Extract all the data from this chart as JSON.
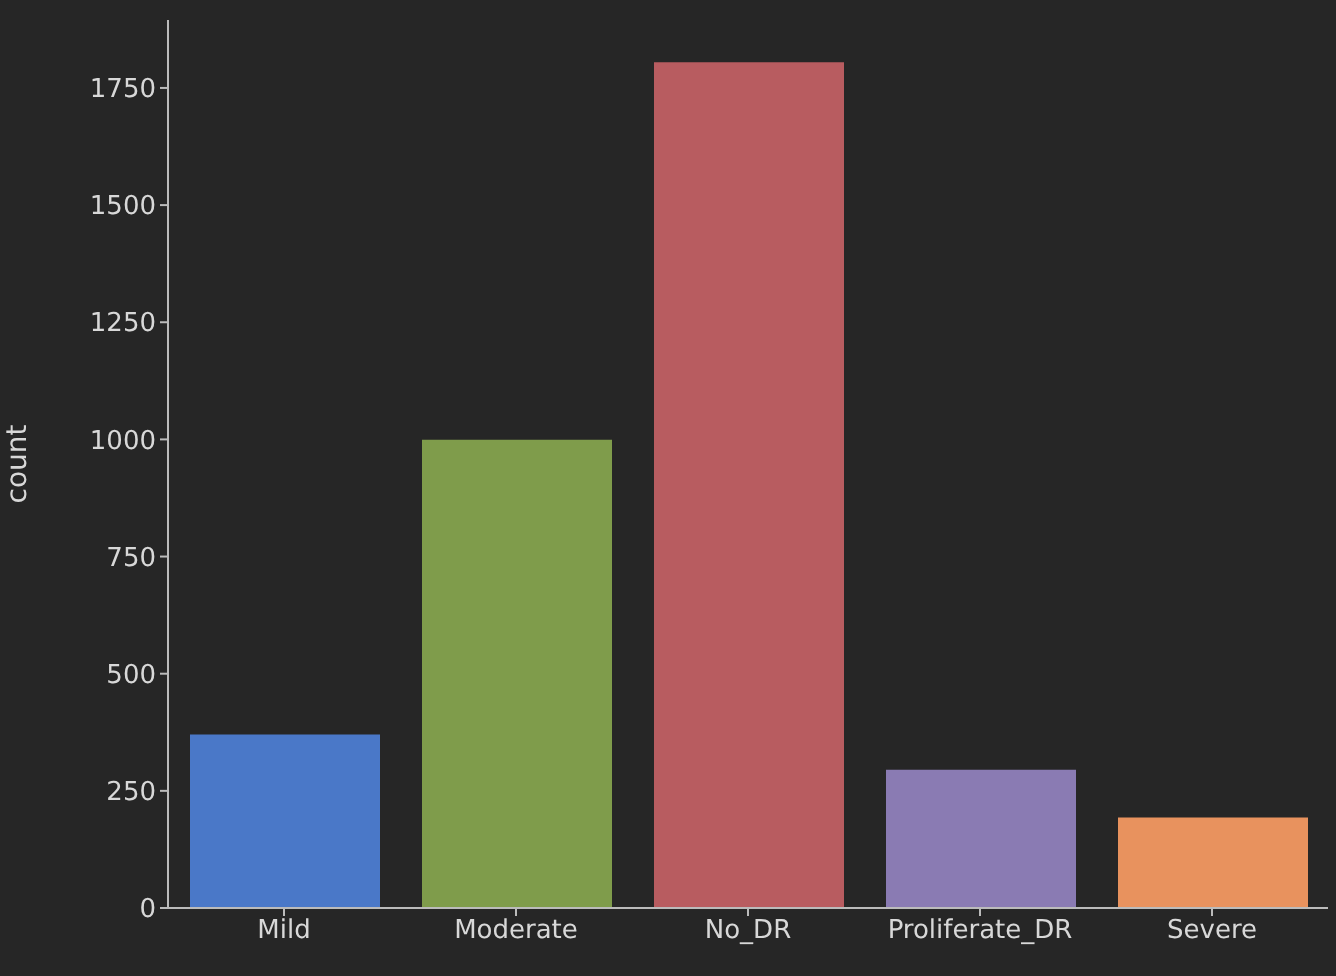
{
  "chart_data": {
    "type": "bar",
    "ylabel": "count",
    "categories": [
      "Mild",
      "Moderate",
      "No_DR",
      "Proliferate_DR",
      "Severe"
    ],
    "values": [
      370,
      999,
      1805,
      295,
      193
    ],
    "colors": [
      "#4a78c8",
      "#7f9c4b",
      "#b85c60",
      "#8a7bb3",
      "#e8925e"
    ],
    "ylim": [
      0,
      1895
    ],
    "yticks": [
      0,
      250,
      500,
      750,
      1000,
      1250,
      1500,
      1750
    ],
    "grid": false
  }
}
